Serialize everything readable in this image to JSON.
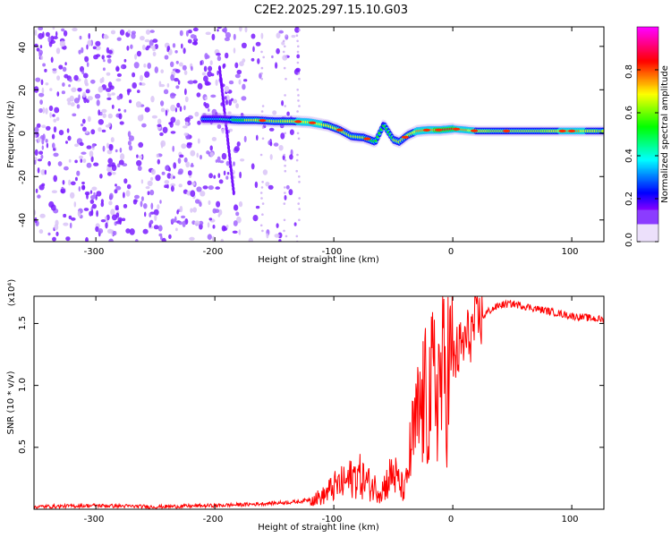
{
  "title": "C2E2.2025.297.15.10.G03",
  "chart_data": [
    {
      "type": "heatmap",
      "xlabel": "Height of straight line (km)",
      "ylabel": "Frequency (Hz)",
      "xlim": [
        -352,
        127
      ],
      "ylim": [
        -50,
        49
      ],
      "xticks": [
        -300,
        -200,
        -100,
        0,
        100
      ],
      "xtick_labels": [
        "-300",
        "-200",
        "-100",
        "0",
        "100"
      ],
      "yticks": [
        -40,
        -20,
        0,
        20,
        40
      ],
      "ytick_labels": [
        "-40",
        "-20",
        "0",
        "20",
        "40"
      ],
      "colorbar": {
        "label": "Normalized spectral amplitude",
        "range": [
          0,
          1
        ],
        "ticks": [
          0.0,
          0.2,
          0.4,
          0.6,
          0.8
        ],
        "tick_labels": [
          "0.0",
          "0.2",
          "0.4",
          "0.6",
          "0.8"
        ],
        "colormap": [
          "#e6d8f5",
          "#6a00ff",
          "#0000ff",
          "#00bfff",
          "#00ffb0",
          "#00ff00",
          "#c8ff00",
          "#ffff00",
          "#ff8c00",
          "#ff0000",
          "#ff00a0"
        ]
      },
      "ridge": {
        "x": [
          -210,
          -195,
          -180,
          -165,
          -150,
          -135,
          -120,
          -105,
          -95,
          -85,
          -75,
          -65,
          -58,
          -50,
          -45,
          -38,
          -30,
          -20,
          -10,
          0,
          20,
          40,
          60,
          80,
          100,
          127
        ],
        "freq": [
          6.5,
          6.5,
          6,
          6,
          5.5,
          5.5,
          5,
          3.5,
          1.5,
          -1.5,
          -2,
          -4,
          4,
          -3,
          -4,
          -1,
          1,
          1.5,
          1.5,
          2,
          1,
          1,
          1,
          1,
          1,
          1
        ],
        "amplitude": [
          0.3,
          0.35,
          0.5,
          0.65,
          0.6,
          0.7,
          0.75,
          0.7,
          0.65,
          0.6,
          0.55,
          0.5,
          0.45,
          0.55,
          0.6,
          0.65,
          0.75,
          0.8,
          0.85,
          0.85,
          0.7,
          0.6,
          0.6,
          0.65,
          0.8,
          0.6
        ]
      },
      "noise_region": {
        "x_start": -352,
        "x_end": -130,
        "amplitude": 0.2
      },
      "grid": false
    },
    {
      "type": "line",
      "xlabel": "Height of straight line (km)",
      "ylabel": "SNR (10 * v/v)",
      "y_multiplier_label": "(x10⁴)",
      "xlim": [
        -352,
        127
      ],
      "ylim": [
        0,
        1.72
      ],
      "xticks": [
        -300,
        -200,
        -100,
        0,
        100
      ],
      "xtick_labels": [
        "-300",
        "-200",
        "-100",
        "0",
        "100"
      ],
      "yticks": [
        0.5,
        1.0,
        1.5
      ],
      "ytick_labels": [
        "0.5",
        "1.0",
        "1.5"
      ],
      "series": [
        {
          "color": "#ff0000",
          "x": [
            -352,
            -300,
            -250,
            -200,
            -170,
            -150,
            -130,
            -110,
            -100,
            -90,
            -80,
            -70,
            -60,
            -50,
            -45,
            -40,
            -35,
            -30,
            -25,
            -20,
            -15,
            -10,
            -5,
            0,
            10,
            20,
            30,
            40,
            50,
            60,
            70,
            80,
            90,
            100,
            110,
            127
          ],
          "y": [
            0.02,
            0.03,
            0.02,
            0.03,
            0.04,
            0.05,
            0.06,
            0.1,
            0.18,
            0.22,
            0.28,
            0.2,
            0.15,
            0.3,
            0.2,
            0.15,
            0.5,
            0.7,
            0.85,
            0.9,
            1.0,
            1.05,
            1.1,
            1.2,
            1.35,
            1.5,
            1.6,
            1.65,
            1.66,
            1.64,
            1.62,
            1.6,
            1.58,
            1.56,
            1.55,
            1.53
          ]
        }
      ],
      "grid": false
    }
  ]
}
